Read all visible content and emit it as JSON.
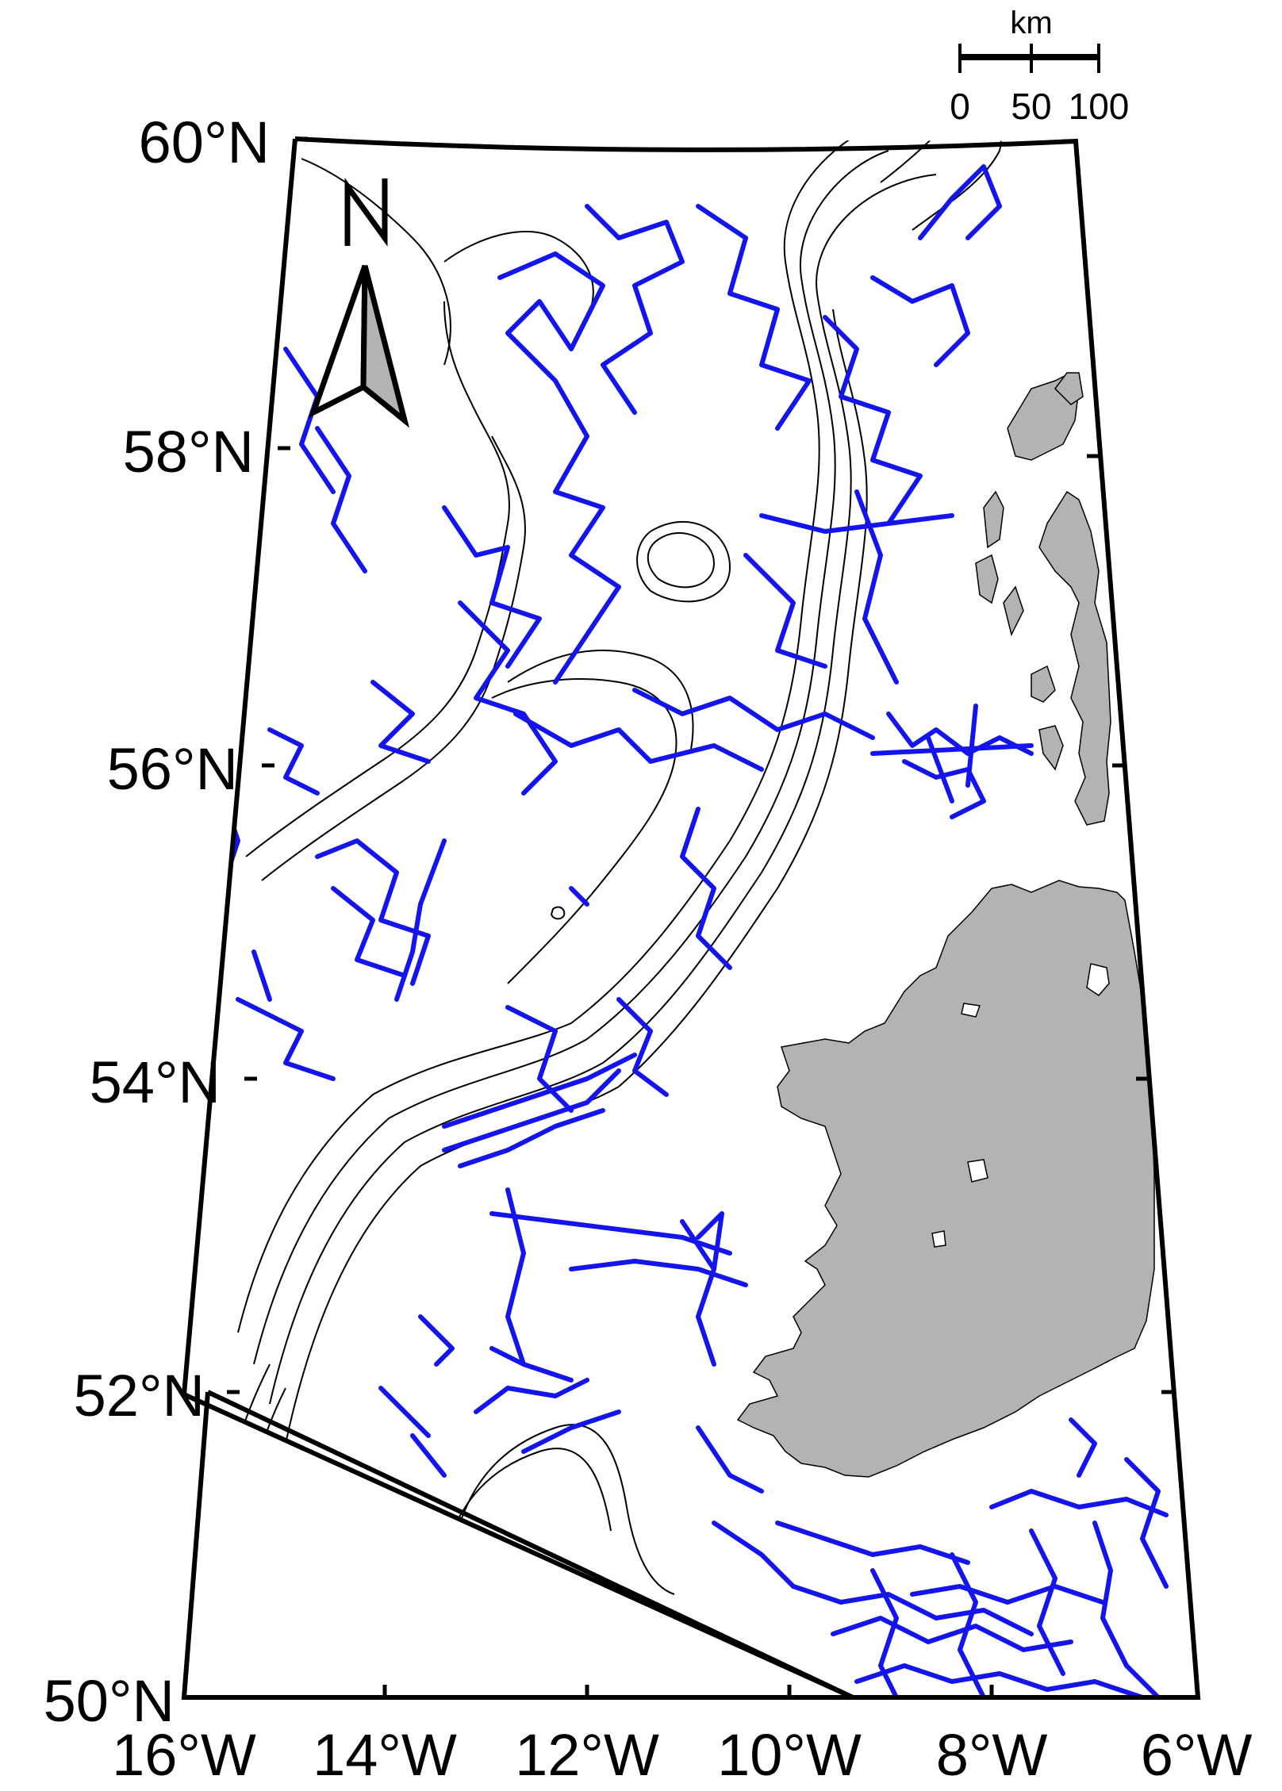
{
  "map": {
    "lat_labels": [
      "60°N",
      "58°N",
      "56°N",
      "54°N",
      "52°N",
      "50°N"
    ],
    "lon_labels": [
      "16°W",
      "14°W",
      "12°W",
      "10°W",
      "8°W",
      "6°W"
    ],
    "lat_range": [
      50,
      60
    ],
    "lon_range": [
      -16,
      -6
    ],
    "colors": {
      "tracks": "#1414ee",
      "land": "#b3b3b3",
      "contours": "#000000",
      "frame": "#000000",
      "arrow_fill": "#b3b3b3"
    }
  },
  "scale_bar": {
    "unit": "km",
    "ticks": [
      "0",
      "50",
      "100"
    ]
  },
  "north_arrow": {
    "letter": "N"
  }
}
